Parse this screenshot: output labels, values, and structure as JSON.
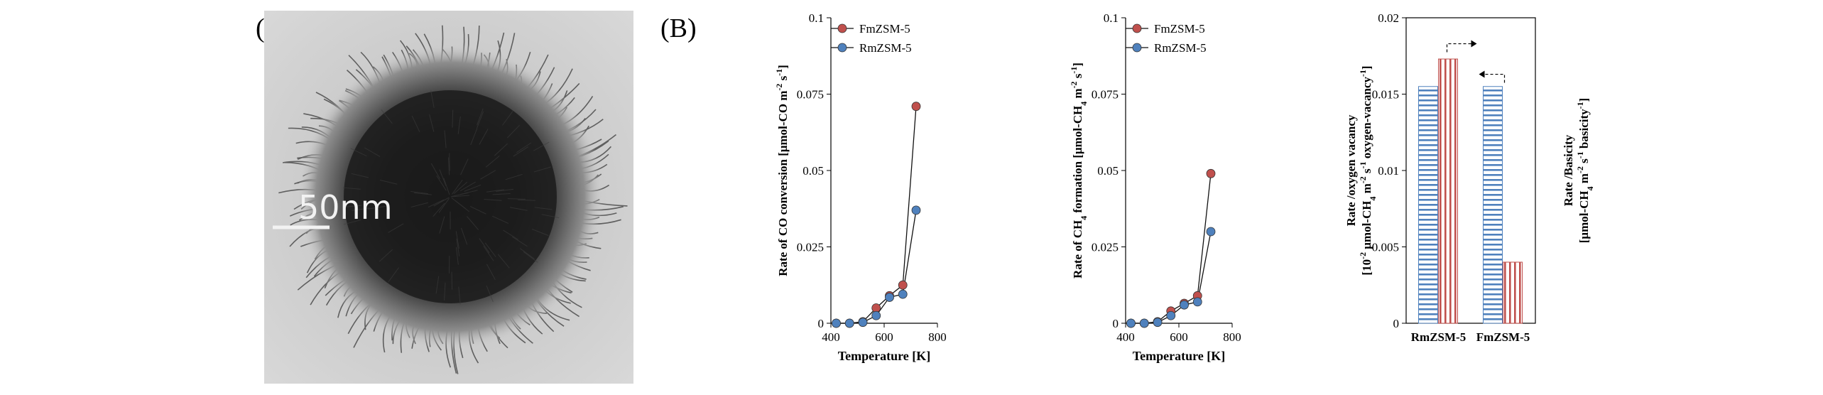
{
  "panels": {
    "a_label": "(A)",
    "b_label": "(B)",
    "scale_bar_text": "50nm"
  },
  "colors": {
    "fm": "#c0504d",
    "rm": "#4f81bd",
    "tem_core": "#1b1b1b",
    "tem_background": "#cfcfcf"
  },
  "chart_data": [
    {
      "type": "line",
      "xlabel": "Temperature [K]",
      "ylabel": "Rate of CO conversion [μmol-CO m-2 s-1]",
      "ylabel_parts": [
        "Rate of CO conversion [μmol-CO m",
        "-2",
        " s",
        "-1",
        "]"
      ],
      "xlim": [
        400,
        800
      ],
      "ylim": [
        0,
        0.1
      ],
      "x_ticks": [
        "400",
        "600",
        "800"
      ],
      "y_ticks": [
        "0",
        "0.025",
        "0.05",
        "0.075",
        "0.1"
      ],
      "legend_position": "top-right",
      "series": [
        {
          "name": "FmZSM-5",
          "color": "#c0504d",
          "x": [
            420,
            470,
            520,
            570,
            620,
            670,
            720
          ],
          "y": [
            0,
            0,
            0.0005,
            0.005,
            0.009,
            0.0125,
            0.071
          ]
        },
        {
          "name": "RmZSM-5",
          "color": "#4f81bd",
          "x": [
            420,
            470,
            520,
            570,
            620,
            670,
            720
          ],
          "y": [
            0,
            0,
            0.0003,
            0.0025,
            0.0085,
            0.0095,
            0.037
          ]
        }
      ]
    },
    {
      "type": "line",
      "xlabel": "Temperature [K]",
      "ylabel": "Rate of CH4 formation [μmol-CH4 m-2 s-1]",
      "ylabel_parts": [
        "Rate of CH",
        "4",
        " formation [μmol-CH",
        "4",
        " m",
        "-2",
        " s",
        "-1",
        "]"
      ],
      "xlim": [
        400,
        800
      ],
      "ylim": [
        0,
        0.1
      ],
      "x_ticks": [
        "400",
        "600",
        "800"
      ],
      "y_ticks": [
        "0",
        "0.025",
        "0.05",
        "0.075",
        "0.1"
      ],
      "legend_position": "top-right",
      "series": [
        {
          "name": "FmZSM-5",
          "color": "#c0504d",
          "x": [
            420,
            470,
            520,
            570,
            620,
            670,
            720
          ],
          "y": [
            0,
            0,
            0.0005,
            0.004,
            0.0065,
            0.009,
            0.049
          ]
        },
        {
          "name": "RmZSM-5",
          "color": "#4f81bd",
          "x": [
            420,
            470,
            520,
            570,
            620,
            670,
            720
          ],
          "y": [
            0,
            0,
            0.0003,
            0.0025,
            0.006,
            0.007,
            0.03
          ]
        }
      ]
    },
    {
      "type": "bar",
      "categories": [
        "RmZSM-5",
        "FmZSM-5"
      ],
      "ylim": [
        0,
        0.02
      ],
      "y_ticks": [
        "0",
        "0.005",
        "0.01",
        "0.015",
        "0.02"
      ],
      "ylabel_left": "Rate /oxygen vacancy [10-2 μmol-CH4 m-2 s-1 oxygen-vacancy-1]",
      "ylabel_left_line1": "Rate /oxygen vacancy",
      "ylabel_left_line2_parts": [
        "[10",
        "-2",
        " μmol-CH",
        "4",
        " m",
        "-2",
        " s",
        "-1",
        " oxygen-vacancy",
        "-1",
        "]"
      ],
      "ylabel_right": "Rate /Basicity [μmol-CH4 m-2 s-1 basicity-1]",
      "ylabel_right_line1": "Rate /Basicity",
      "ylabel_right_line2_parts": [
        "[μmol-CH",
        "4",
        " m",
        "-2",
        " s",
        "-1",
        " basicity",
        "-1",
        "]"
      ],
      "series": [
        {
          "pattern": "horizontal-stripes",
          "color": "#4f81bd",
          "axis": "left",
          "values": [
            0.0155,
            0.0155
          ]
        },
        {
          "pattern": "vertical-stripes",
          "color": "#c0504d",
          "axis": "right",
          "values": [
            0.0173,
            0.004
          ]
        }
      ]
    }
  ]
}
